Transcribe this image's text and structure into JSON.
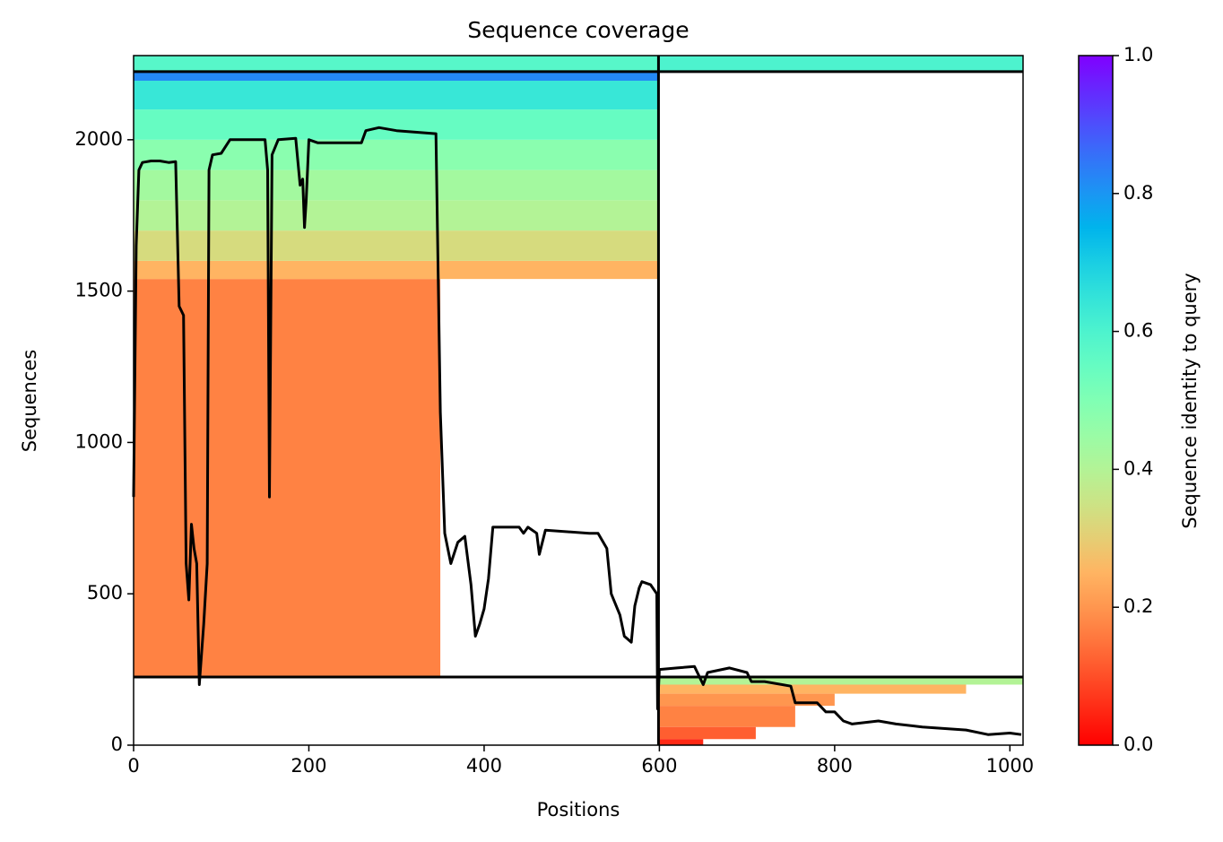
{
  "chart_data": {
    "type": "coverage",
    "title": "Sequence coverage",
    "xlabel": "Positions",
    "ylabel": "Sequences",
    "colorbar_label": "Sequence identity to query",
    "colormap": "rainbow_r",
    "xlim": [
      0,
      1015
    ],
    "ylim": [
      0,
      2278
    ],
    "xticks": [
      0,
      200,
      400,
      600,
      800,
      1000
    ],
    "yticks": [
      0,
      500,
      1000,
      1500,
      2000
    ],
    "clim": [
      0,
      1
    ],
    "cticks": [
      {
        "value": 0,
        "label": "0.0"
      },
      0.2,
      0.4,
      0.6,
      0.8,
      {
        "value": 1,
        "label": "1.0"
      }
    ],
    "hlines": [
      225,
      2225
    ],
    "vlines": [
      599
    ],
    "blocks": [
      {
        "x0": 0,
        "x1": 350,
        "y0": 226,
        "y1": 1540,
        "identity": 0.17
      },
      {
        "x0": 0,
        "x1": 599,
        "y0": 1540,
        "y1": 1600,
        "identity": 0.25
      },
      {
        "x0": 0,
        "x1": 599,
        "y0": 1600,
        "y1": 1700,
        "identity": 0.33
      },
      {
        "x0": 0,
        "x1": 599,
        "y0": 1700,
        "y1": 1800,
        "identity": 0.4
      },
      {
        "x0": 0,
        "x1": 599,
        "y0": 1800,
        "y1": 1900,
        "identity": 0.43
      },
      {
        "x0": 0,
        "x1": 599,
        "y0": 1900,
        "y1": 2000,
        "identity": 0.48
      },
      {
        "x0": 0,
        "x1": 599,
        "y0": 2000,
        "y1": 2100,
        "identity": 0.55
      },
      {
        "x0": 0,
        "x1": 599,
        "y0": 2100,
        "y1": 2195,
        "identity": 0.64
      },
      {
        "x0": 0,
        "x1": 599,
        "y0": 2195,
        "y1": 2225,
        "identity": 0.82
      },
      {
        "x0": 0,
        "x1": 599,
        "y0": 2225,
        "y1": 2278,
        "identity": 0.58
      },
      {
        "x0": 599,
        "x1": 1015,
        "y0": 2225,
        "y1": 2278,
        "identity": 0.6
      },
      {
        "x0": 599,
        "x1": 1015,
        "y0": 200,
        "y1": 225,
        "identity": 0.4
      },
      {
        "x0": 599,
        "x1": 950,
        "y0": 170,
        "y1": 200,
        "identity": 0.25
      },
      {
        "x0": 599,
        "x1": 800,
        "y0": 130,
        "y1": 170,
        "identity": 0.2
      },
      {
        "x0": 599,
        "x1": 755,
        "y0": 60,
        "y1": 130,
        "identity": 0.17
      },
      {
        "x0": 599,
        "x1": 710,
        "y0": 20,
        "y1": 60,
        "identity": 0.12
      },
      {
        "x0": 599,
        "x1": 650,
        "y0": 0,
        "y1": 20,
        "identity": 0.05
      }
    ],
    "line": {
      "x": [
        0,
        3,
        6,
        10,
        20,
        30,
        40,
        48,
        52,
        57,
        60,
        63,
        66,
        69,
        72,
        75,
        80,
        84,
        86,
        90,
        100,
        110,
        150,
        153,
        155,
        158,
        165,
        185,
        190,
        193,
        195,
        197,
        200,
        210,
        260,
        265,
        280,
        300,
        345,
        350,
        355,
        362,
        370,
        378,
        385,
        390,
        395,
        400,
        405,
        410,
        440,
        445,
        450,
        460,
        463,
        470,
        520,
        530,
        540,
        545,
        555,
        560,
        568,
        572,
        577,
        580,
        590,
        597,
        598,
        600,
        620,
        640,
        650,
        655,
        680,
        700,
        705,
        720,
        750,
        755,
        770,
        780,
        790,
        800,
        810,
        820,
        850,
        870,
        900,
        950,
        975,
        1000,
        1013
      ],
      "y": [
        820,
        1650,
        1900,
        1925,
        1930,
        1930,
        1925,
        1928,
        1450,
        1420,
        600,
        480,
        730,
        650,
        600,
        200,
        400,
        600,
        1900,
        1950,
        1955,
        2000,
        2000,
        1900,
        820,
        1950,
        2000,
        2005,
        1850,
        1870,
        1710,
        1800,
        2000,
        1990,
        1990,
        2030,
        2040,
        2030,
        2020,
        1100,
        700,
        600,
        670,
        690,
        530,
        360,
        400,
        450,
        550,
        720,
        720,
        700,
        720,
        700,
        630,
        710,
        700,
        700,
        650,
        500,
        430,
        360,
        340,
        460,
        520,
        540,
        530,
        500,
        120,
        250,
        255,
        260,
        200,
        240,
        255,
        240,
        210,
        210,
        195,
        140,
        140,
        140,
        110,
        110,
        80,
        70,
        80,
        70,
        60,
        50,
        35,
        40,
        35
      ],
      "color": "#000000"
    }
  }
}
